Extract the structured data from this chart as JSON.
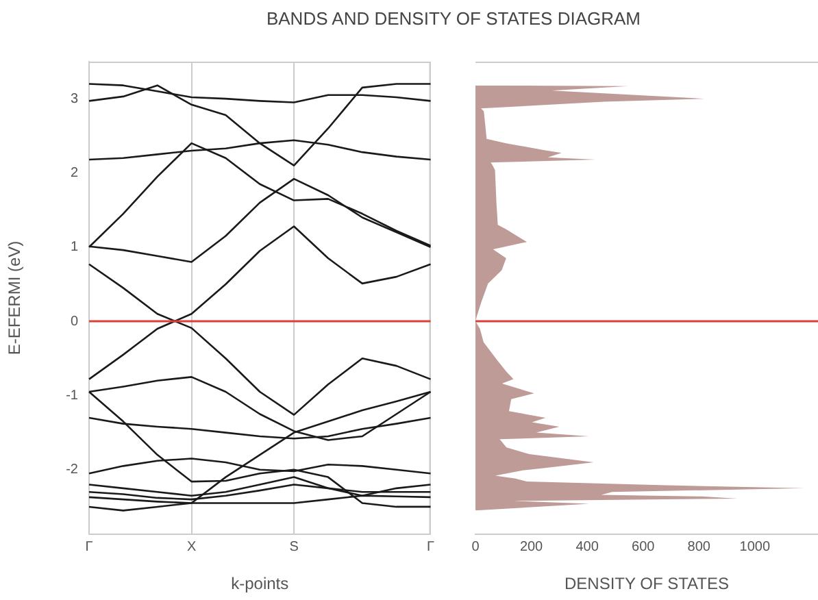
{
  "chart_data": [
    {
      "type": "line",
      "title": "BANDS AND DENSITY OF STATES DIAGRAM",
      "xlabel": "k-points",
      "ylabel": "E-EFERMI (eV)",
      "marker": "none",
      "grid": "x",
      "categories": [
        "Γ",
        null,
        null,
        "X",
        null,
        null,
        "S",
        null,
        null,
        null,
        "Γ"
      ],
      "ylim": [
        -2.87,
        3.5
      ],
      "yticks": [
        -2,
        -1,
        0,
        1,
        2,
        3
      ],
      "ref_lines": [
        {
          "axis": "y",
          "value": 0,
          "color": "#d9403a"
        }
      ],
      "series": [
        {
          "color": "#1a1a1a",
          "values": [
            3.2,
            3.18,
            3.1,
            3.02,
            3.0,
            2.97,
            2.95,
            3.05,
            3.05,
            3.02,
            2.97
          ]
        },
        {
          "color": "#1a1a1a",
          "values": [
            2.97,
            3.03,
            3.18,
            2.92,
            2.78,
            2.4,
            2.1,
            2.6,
            3.15,
            3.2,
            3.2
          ]
        },
        {
          "color": "#1a1a1a",
          "values": [
            2.18,
            2.2,
            2.25,
            2.3,
            2.33,
            2.4,
            2.44,
            2.38,
            2.28,
            2.22,
            2.18
          ]
        },
        {
          "color": "#1a1a1a",
          "values": [
            1.0,
            1.45,
            1.95,
            2.4,
            2.2,
            1.85,
            1.63,
            1.65,
            1.45,
            1.22,
            1.02
          ]
        },
        {
          "color": "#1a1a1a",
          "values": [
            1.01,
            0.96,
            0.88,
            0.8,
            1.15,
            1.6,
            1.92,
            1.7,
            1.4,
            1.2,
            1.0
          ]
        },
        {
          "color": "#1a1a1a",
          "values": [
            0.77,
            0.45,
            0.1,
            -0.09,
            -0.5,
            -0.95,
            -1.26,
            -0.85,
            -0.5,
            -0.6,
            -0.78
          ]
        },
        {
          "color": "#1a1a1a",
          "values": [
            -0.78,
            -0.45,
            -0.1,
            0.1,
            0.5,
            0.95,
            1.28,
            0.85,
            0.51,
            0.6,
            0.77
          ]
        },
        {
          "color": "#1a1a1a",
          "values": [
            -0.95,
            -0.88,
            -0.8,
            -0.75,
            -0.95,
            -1.25,
            -1.48,
            -1.6,
            -1.55,
            -1.25,
            -0.95
          ]
        },
        {
          "color": "#1a1a1a",
          "values": [
            -0.95,
            -1.35,
            -1.8,
            -2.16,
            -2.15,
            -2.05,
            -2.0,
            -2.1,
            -2.45,
            -2.5,
            -2.5
          ]
        },
        {
          "color": "#1a1a1a",
          "values": [
            -2.5,
            -2.55,
            -2.5,
            -2.45,
            -2.1,
            -1.8,
            -1.5,
            -1.35,
            -1.2,
            -1.08,
            -0.95
          ]
        },
        {
          "color": "#1a1a1a",
          "values": [
            -1.3,
            -1.38,
            -1.42,
            -1.45,
            -1.5,
            -1.55,
            -1.58,
            -1.55,
            -1.45,
            -1.38,
            -1.3
          ]
        },
        {
          "color": "#1a1a1a",
          "values": [
            -2.05,
            -1.95,
            -1.88,
            -1.85,
            -1.9,
            -2.0,
            -2.02,
            -1.93,
            -1.95,
            -2.0,
            -2.05
          ]
        },
        {
          "color": "#1a1a1a",
          "values": [
            -2.2,
            -2.25,
            -2.3,
            -2.35,
            -2.3,
            -2.2,
            -2.1,
            -2.25,
            -2.35,
            -2.25,
            -2.2
          ]
        },
        {
          "color": "#1a1a1a",
          "values": [
            -2.3,
            -2.33,
            -2.38,
            -2.4,
            -2.35,
            -2.28,
            -2.2,
            -2.25,
            -2.3,
            -2.3,
            -2.3
          ]
        },
        {
          "color": "#1a1a1a",
          "values": [
            -2.37,
            -2.4,
            -2.43,
            -2.45,
            -2.45,
            -2.45,
            -2.45,
            -2.4,
            -2.35,
            -2.36,
            -2.37
          ]
        }
      ]
    },
    {
      "type": "area",
      "orientation": "horizontal",
      "xlabel": "DENSITY OF STATES",
      "grid": false,
      "tick_labels": "x",
      "marker": "none",
      "xlim": [
        0,
        1226
      ],
      "xticks": [
        0,
        200,
        400,
        600,
        800,
        1000
      ],
      "ylim": [
        -2.87,
        3.5
      ],
      "ref_lines": [
        {
          "axis": "y",
          "value": 0,
          "color": "#d9403a"
        }
      ],
      "series": [
        {
          "color": "#bf9b97",
          "x": [
            -2.55,
            -2.46,
            -2.42,
            -2.39,
            -2.36,
            -2.34,
            -2.3,
            -2.25,
            -2.21,
            -2.16,
            -2.12,
            -2.08,
            -2.01,
            -1.98,
            -1.9,
            -1.79,
            -1.7,
            -1.59,
            -1.55,
            -1.5,
            -1.42,
            -1.36,
            -1.3,
            -1.21,
            -1.05,
            -0.97,
            -0.84,
            -0.78,
            -0.68,
            -0.53,
            -0.28,
            -0.1,
            0,
            0.07,
            0.26,
            0.51,
            0.69,
            0.85,
            0.97,
            1.07,
            1.24,
            1.3,
            1.6,
            2.04,
            2.09,
            2.14,
            2.18,
            2.21,
            2.27,
            2.31,
            2.4,
            2.46,
            2.65,
            2.83,
            2.87,
            2.96,
            3.0,
            3.11,
            3.17,
            3.18
          ],
          "values": [
            0,
            406,
            136,
            939,
            810,
            450,
            489,
            1177,
            685,
            184,
            144,
            71,
            169,
            243,
            423,
            193,
            111,
            87,
            406,
            218,
            300,
            202,
            251,
            120,
            128,
            210,
            95,
            136,
            111,
            79,
            29,
            16,
            0,
            5,
            21,
            45,
            94,
            110,
            63,
            184,
            110,
            80,
            75,
            70,
            63,
            55,
            430,
            259,
            308,
            243,
            110,
            40,
            35,
            30,
            20,
            460,
            821,
            274,
            546,
            0
          ]
        }
      ]
    }
  ]
}
